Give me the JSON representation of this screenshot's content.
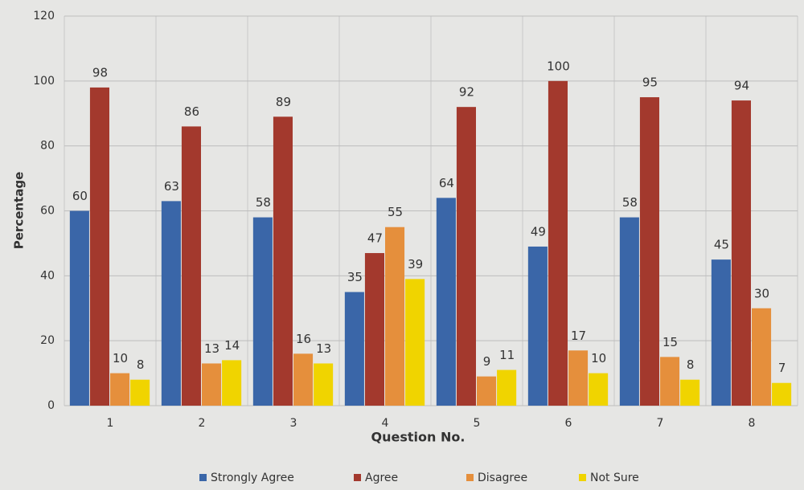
{
  "chart_data": {
    "type": "bar",
    "x_label": "Question No.",
    "y_label": "Percentage",
    "categories": [
      "1",
      "2",
      "3",
      "4",
      "5",
      "6",
      "7",
      "8"
    ],
    "series": [
      {
        "name": "Strongly Agree",
        "color": "#3a66a8",
        "values": [
          60,
          63,
          58,
          35,
          64,
          49,
          58,
          45
        ]
      },
      {
        "name": "Agree",
        "color": "#a3392d",
        "values": [
          98,
          86,
          89,
          47,
          92,
          100,
          95,
          94
        ]
      },
      {
        "name": "Disagree",
        "color": "#e58f3c",
        "values": [
          10,
          13,
          16,
          55,
          9,
          17,
          15,
          30
        ]
      },
      {
        "name": "Not Sure",
        "color": "#f0d400",
        "values": [
          8,
          14,
          13,
          39,
          11,
          10,
          8,
          7
        ]
      }
    ],
    "ylim": [
      0,
      120
    ],
    "yticks": [
      0,
      20,
      40,
      60,
      80,
      100,
      120
    ],
    "grid": true,
    "legend": "bottom"
  }
}
